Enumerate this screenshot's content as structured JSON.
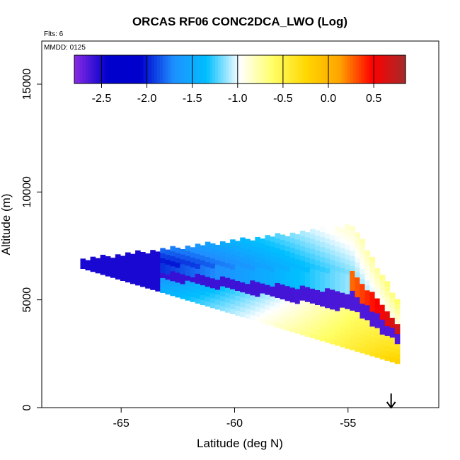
{
  "chart_data": {
    "type": "heatmap",
    "title": "ORCAS RF06 CONC2DCA_LWO (Log)",
    "xlabel": "Latitude (deg N)",
    "ylabel": "Altitude (m)",
    "annotations": {
      "flights": "Flts: 6",
      "date": "MMDD: 0125"
    },
    "xlim": [
      -68.5,
      -51.0
    ],
    "ylim": [
      0,
      17000
    ],
    "x_ticks": [
      -65,
      -60,
      -55
    ],
    "x_tick_labels": [
      "-65",
      "-60",
      "-55"
    ],
    "y_ticks": [
      0,
      5000,
      10000,
      15000
    ],
    "y_tick_labels": [
      "0",
      "5000",
      "10000",
      "15000"
    ],
    "colorbar": {
      "min": -2.8,
      "max": 0.85,
      "ticks": [
        -2.5,
        -2.0,
        -1.5,
        -1.0,
        -0.5,
        0.0,
        0.5
      ],
      "tick_labels": [
        "-2.5",
        "-2.0",
        "-1.5",
        "-1.0",
        "-0.5",
        "0.0",
        "0.5"
      ],
      "colors": [
        "#8a2be2",
        "#0000cd",
        "#0000cd",
        "#1e90ff",
        "#00bfff",
        "#ffffff",
        "#ffff66",
        "#ffd700",
        "#ffa500",
        "#ff0000",
        "#a52a2a"
      ]
    },
    "bands": [
      {
        "y_top": 8400,
        "y_bottom": 6000,
        "value_start": -2.45,
        "value_end": -1.15,
        "x_start_top": -54.7,
        "x_start_bottom": -54.0,
        "x_end_top": -54.7,
        "x_end_bottom": -54.0
      },
      {
        "y_top": 7300,
        "y_bottom": 5400,
        "value_start": -2.4,
        "value_end": 0.7
      },
      {
        "y_top": 5600,
        "y_bottom": 4600,
        "value_start": -2.3,
        "value_end": -2.6
      },
      {
        "y_top": 4700,
        "y_bottom": 2000,
        "value_start": -1.6,
        "value_end": -0.2
      }
    ],
    "marker": {
      "x": -53.1,
      "y": 0,
      "symbol": "down-arrow"
    }
  }
}
